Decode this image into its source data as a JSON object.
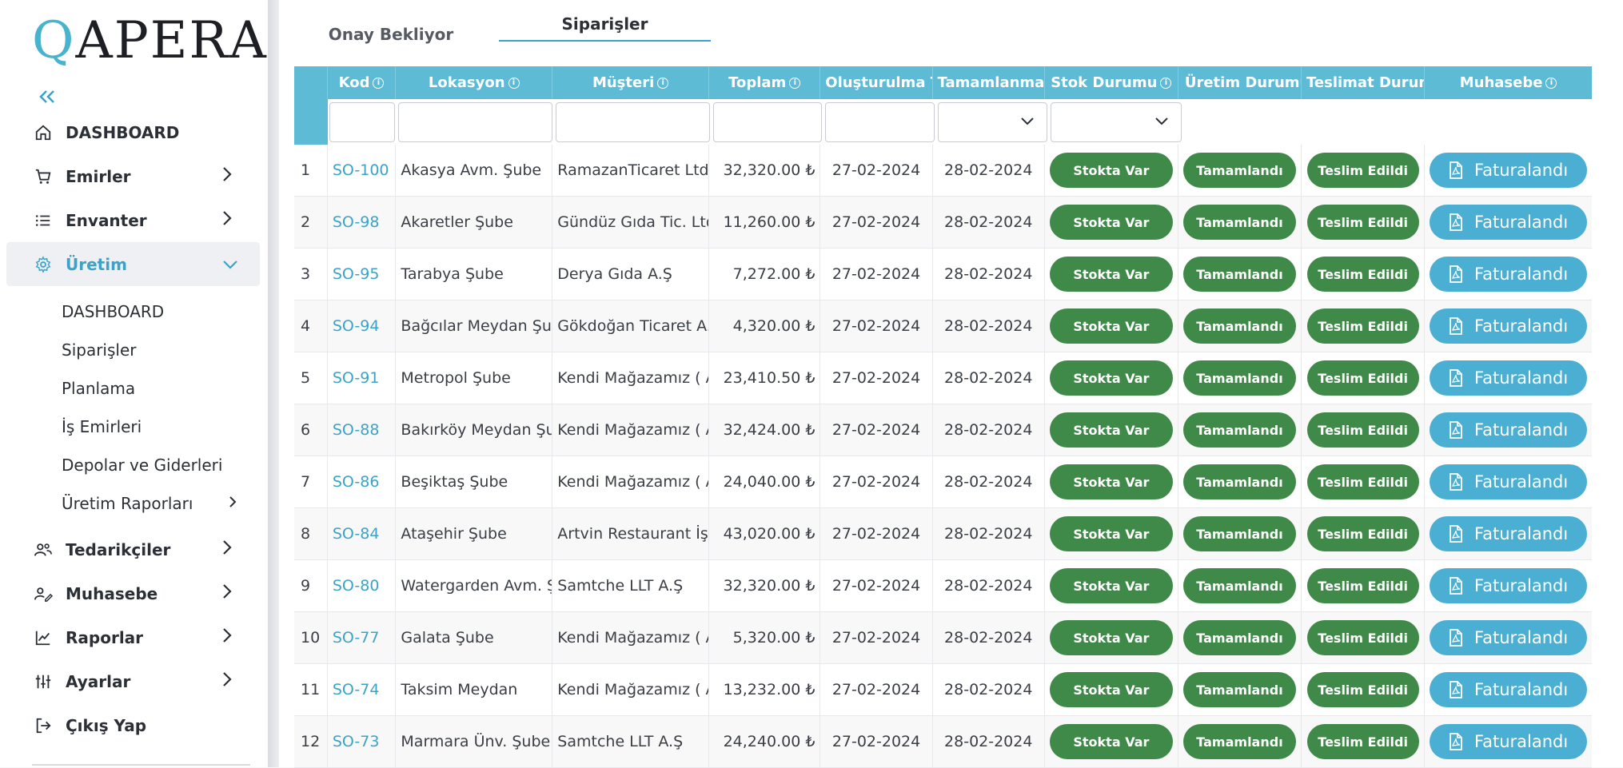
{
  "brand": {
    "logo_q": "Q",
    "logo_rest": "APERA"
  },
  "sidebar": {
    "collapse_glyph": "«",
    "items": [
      {
        "label": "DASHBOARD",
        "icon": "home-icon",
        "has_children": false
      },
      {
        "label": "Emirler",
        "icon": "cart-icon",
        "has_children": true
      },
      {
        "label": "Envanter",
        "icon": "list-icon",
        "has_children": true
      },
      {
        "label": "Üretim",
        "icon": "gear-icon",
        "has_children": true,
        "active": true
      }
    ],
    "sub_items": [
      {
        "label": "DASHBOARD"
      },
      {
        "label": "Siparişler"
      },
      {
        "label": "Planlama"
      },
      {
        "label": "İş Emirleri"
      },
      {
        "label": "Depolar ve Giderleri"
      },
      {
        "label": "Üretim Raporları",
        "has_children": true
      }
    ],
    "items_after": [
      {
        "label": "Tedarikçiler",
        "icon": "users-icon"
      },
      {
        "label": "Muhasebe",
        "icon": "user-edit-icon"
      },
      {
        "label": "Raporlar",
        "icon": "chart-line-icon"
      },
      {
        "label": "Ayarlar",
        "icon": "sliders-icon"
      }
    ],
    "logout": {
      "label": "Çıkış Yap",
      "icon": "logout-icon"
    }
  },
  "tabs": [
    {
      "label": "Onay Bekliyor",
      "active": false
    },
    {
      "label": "Siparişler",
      "active": true
    }
  ],
  "table": {
    "columns": [
      "Kod",
      "Lokasyon",
      "Müşteri",
      "Toplam",
      "Oluşturulma Tarihi",
      "Tamamlanması",
      "Stok Durumu",
      "Üretim Durumu",
      "Teslimat Durumu",
      "Muhasebe"
    ],
    "columns_with_info": [
      "Kod",
      "Lokasyon",
      "Müşteri",
      "Toplam",
      "Stok Durumu",
      "Muhasebe"
    ],
    "rows": [
      {
        "n": "1",
        "code": "SO-100",
        "loc": "Akasya Avm. Şube",
        "cust": "RamazanTicaret Ltd. Ş",
        "total": "32,320.00 ₺",
        "created": "27-02-2024",
        "done": "28-02-2024",
        "stock": "Stokta Var",
        "prod": "Tamamlandı",
        "ship": "Teslim Edildi",
        "acc": "Faturalandı"
      },
      {
        "n": "2",
        "code": "SO-98",
        "loc": "Akaretler Şube",
        "cust": "Gündüz Gıda Tic. Ltd.",
        "total": "11,260.00 ₺",
        "created": "27-02-2024",
        "done": "28-02-2024",
        "stock": "Stokta Var",
        "prod": "Tamamlandı",
        "ship": "Teslim Edildi",
        "acc": "Faturalandı"
      },
      {
        "n": "3",
        "code": "SO-95",
        "loc": "Tarabya Şube",
        "cust": "Derya Gıda A.Ş",
        "total": "7,272.00 ₺",
        "created": "27-02-2024",
        "done": "28-02-2024",
        "stock": "Stokta Var",
        "prod": "Tamamlandı",
        "ship": "Teslim Edildi",
        "acc": "Faturalandı"
      },
      {
        "n": "4",
        "code": "SO-94",
        "loc": "Bağcılar Meydan Şube",
        "cust": "Gökdoğan Ticaret A.Ş",
        "total": "4,320.00 ₺",
        "created": "27-02-2024",
        "done": "28-02-2024",
        "stock": "Stokta Var",
        "prod": "Tamamlandı",
        "ship": "Teslim Edildi",
        "acc": "Faturalandı"
      },
      {
        "n": "5",
        "code": "SO-91",
        "loc": "Metropol Şube",
        "cust": "Kendi Mağazamız ( Ad",
        "total": "23,410.50 ₺",
        "created": "27-02-2024",
        "done": "28-02-2024",
        "stock": "Stokta Var",
        "prod": "Tamamlandı",
        "ship": "Teslim Edildi",
        "acc": "Faturalandı"
      },
      {
        "n": "6",
        "code": "SO-88",
        "loc": "Bakırköy Meydan Şube",
        "cust": "Kendi Mağazamız ( Ad",
        "total": "32,424.00 ₺",
        "created": "27-02-2024",
        "done": "28-02-2024",
        "stock": "Stokta Var",
        "prod": "Tamamlandı",
        "ship": "Teslim Edildi",
        "acc": "Faturalandı"
      },
      {
        "n": "7",
        "code": "SO-86",
        "loc": "Beşiktaş Şube",
        "cust": "Kendi Mağazamız ( Ad",
        "total": "24,040.00 ₺",
        "created": "27-02-2024",
        "done": "28-02-2024",
        "stock": "Stokta Var",
        "prod": "Tamamlandı",
        "ship": "Teslim Edildi",
        "acc": "Faturalandı"
      },
      {
        "n": "8",
        "code": "SO-84",
        "loc": "Ataşehir Şube",
        "cust": "Artvin Restaurant İşlet",
        "total": "43,020.00 ₺",
        "created": "27-02-2024",
        "done": "28-02-2024",
        "stock": "Stokta Var",
        "prod": "Tamamlandı",
        "ship": "Teslim Edildi",
        "acc": "Faturalandı"
      },
      {
        "n": "9",
        "code": "SO-80",
        "loc": "Watergarden Avm. Şube",
        "cust": "Samtche LLT A.Ş",
        "total": "32,320.00 ₺",
        "created": "27-02-2024",
        "done": "28-02-2024",
        "stock": "Stokta Var",
        "prod": "Tamamlandı",
        "ship": "Teslim Edildi",
        "acc": "Faturalandı"
      },
      {
        "n": "10",
        "code": "SO-77",
        "loc": "Galata Şube",
        "cust": "Kendi Mağazamız ( Ad",
        "total": "5,320.00 ₺",
        "created": "27-02-2024",
        "done": "28-02-2024",
        "stock": "Stokta Var",
        "prod": "Tamamlandı",
        "ship": "Teslim Edildi",
        "acc": "Faturalandı"
      },
      {
        "n": "11",
        "code": "SO-74",
        "loc": "Taksim Meydan",
        "cust": "Kendi Mağazamız ( Ad",
        "total": "13,232.00 ₺",
        "created": "27-02-2024",
        "done": "28-02-2024",
        "stock": "Stokta Var",
        "prod": "Tamamlandı",
        "ship": "Teslim Edildi",
        "acc": "Faturalandı"
      },
      {
        "n": "12",
        "code": "SO-73",
        "loc": "Marmara Ünv. Şube",
        "cust": "Samtche LLT A.Ş",
        "total": "24,240.00 ₺",
        "created": "27-02-2024",
        "done": "28-02-2024",
        "stock": "Stokta Var",
        "prod": "Tamamlandı",
        "ship": "Teslim Edildi",
        "acc": "Faturalandı"
      }
    ]
  },
  "colors": {
    "accent": "#3aa3c7",
    "header": "#5dbbd6",
    "status_green": "#3f8a48",
    "invoice_blue": "#4aafd3"
  }
}
